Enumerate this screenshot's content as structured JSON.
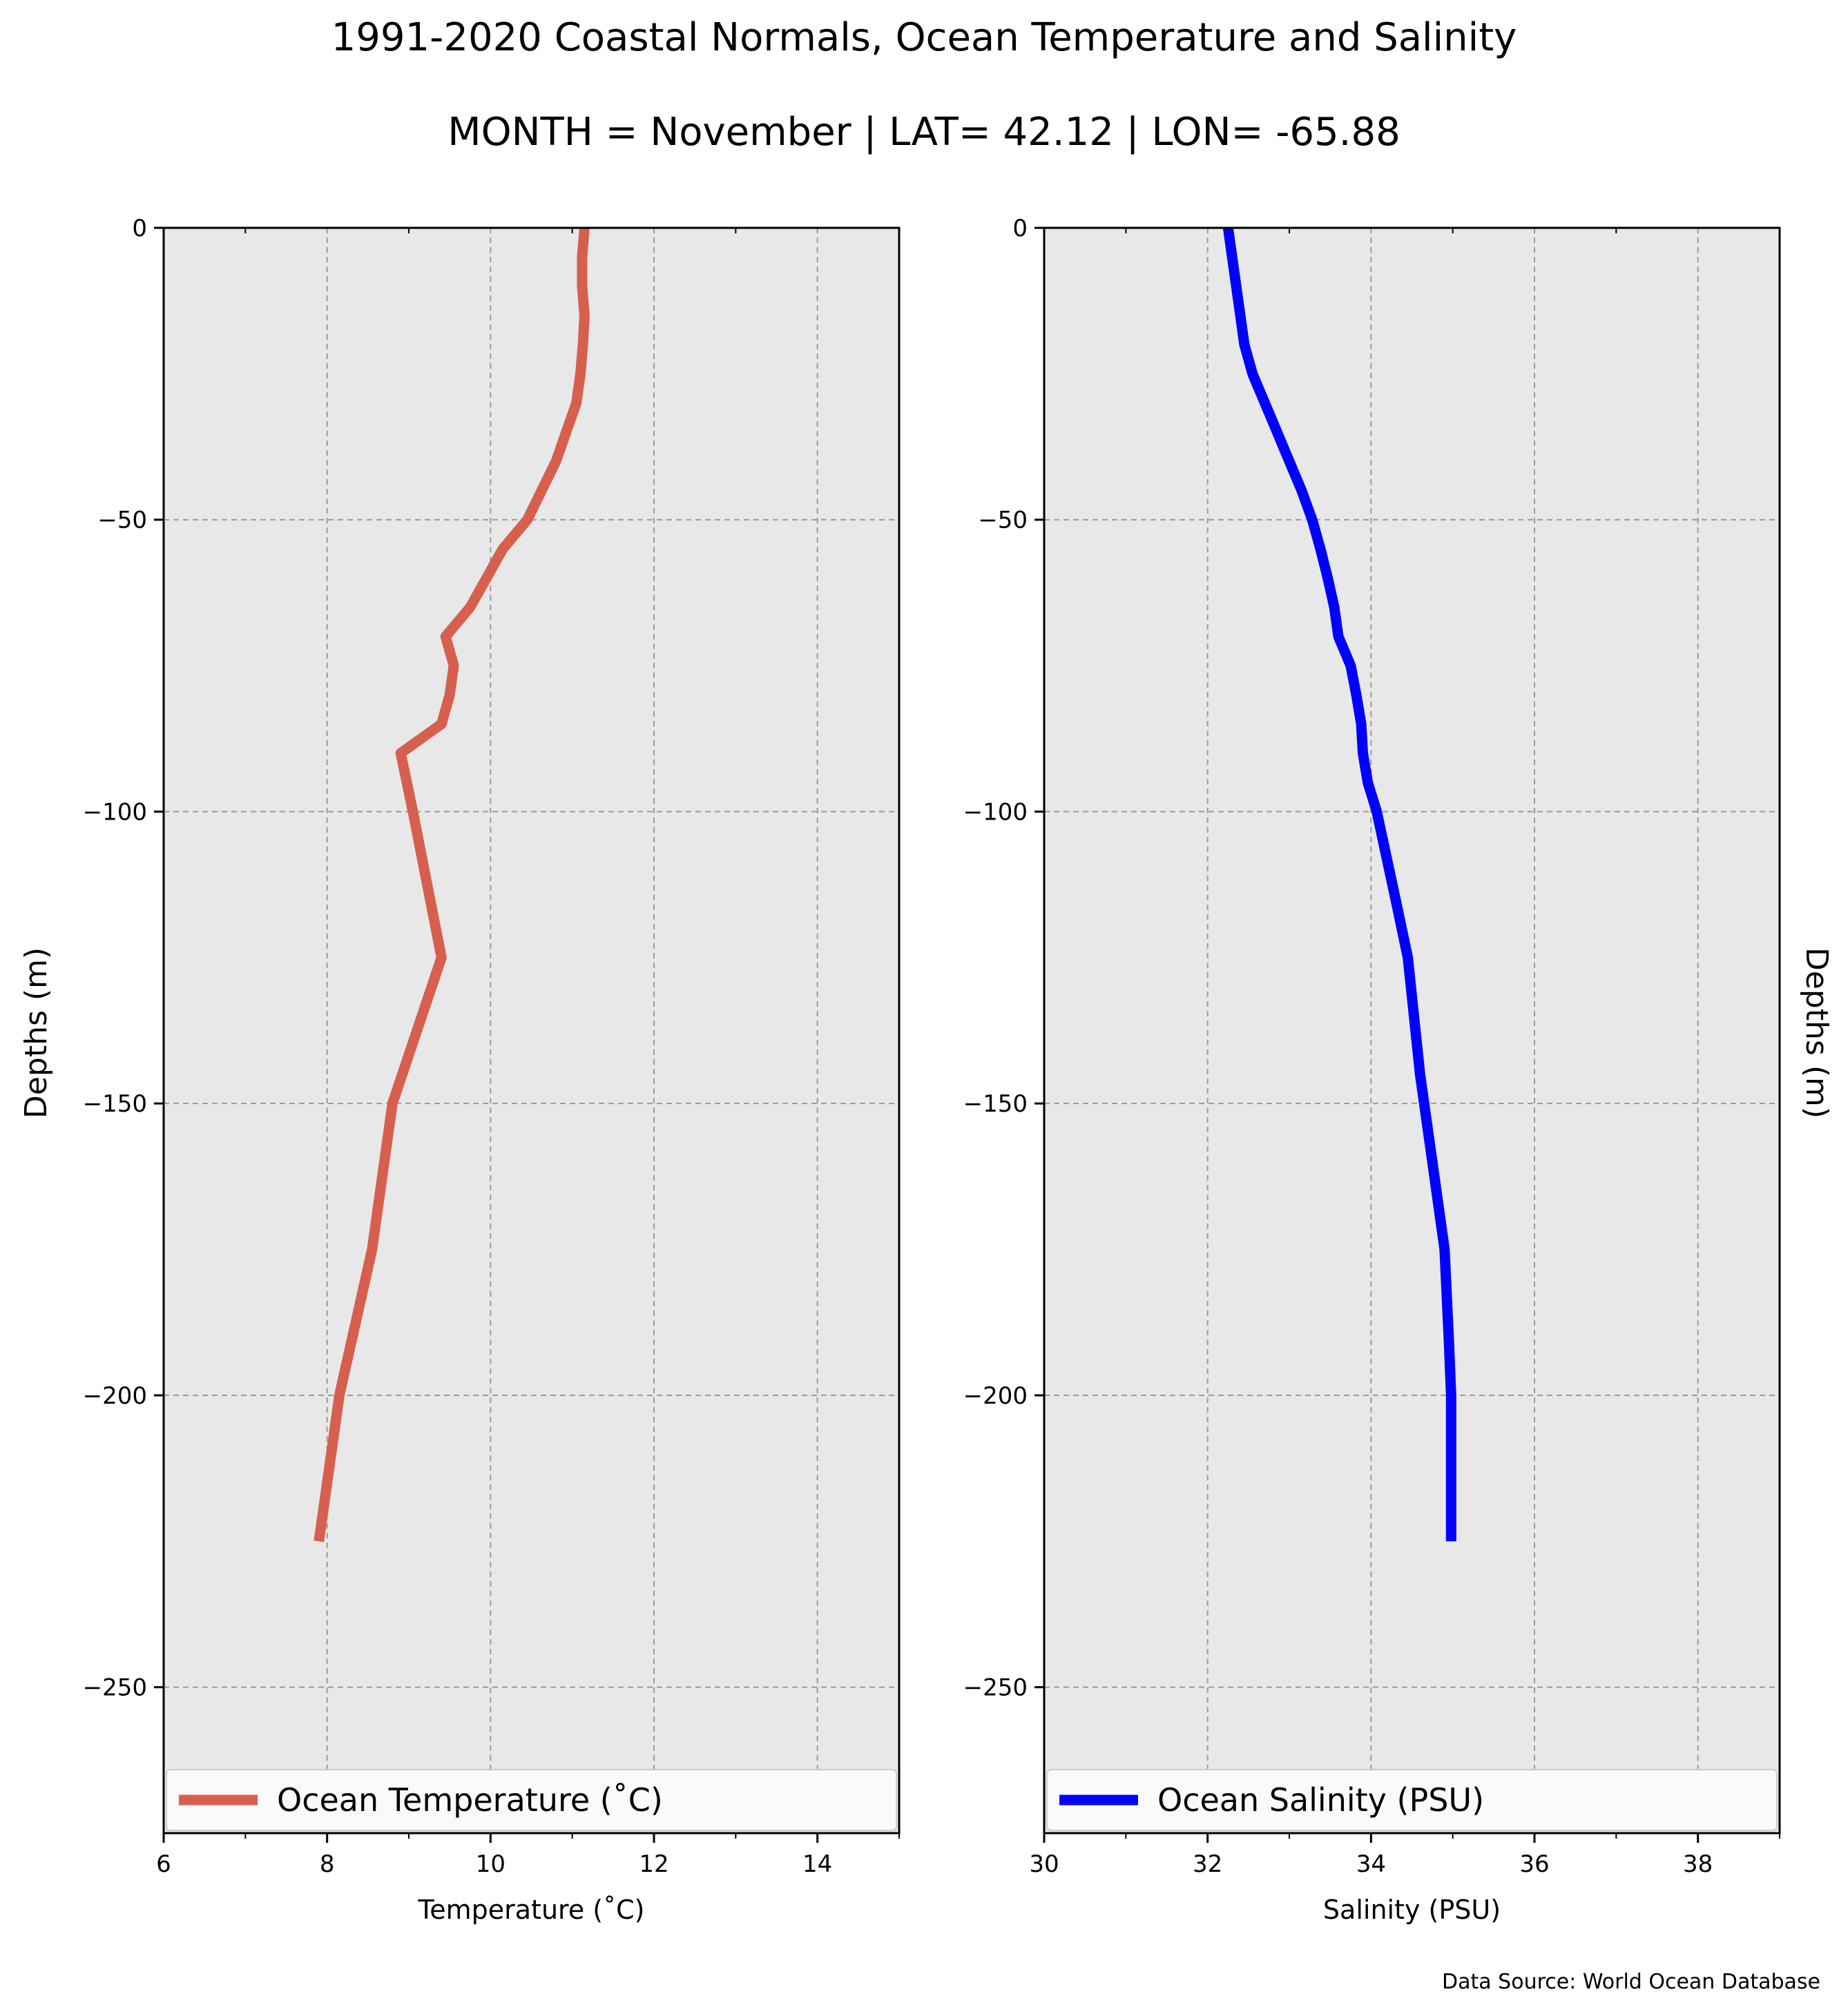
{
  "figure": {
    "title_line1": "1991-2020 Coastal Normals, Ocean Temperature and Salinity",
    "title_line2": "MONTH = November | LAT= 42.12 | LON= -65.88",
    "source": "Data Source: World Ocean Database",
    "background": "#e8e8e8"
  },
  "chart_data": [
    {
      "type": "line",
      "xlabel": "Temperature (˚C)",
      "ylabel": "Depths (m)",
      "xlim": [
        6,
        15
      ],
      "ylim": [
        -275,
        0
      ],
      "xticks": [
        6,
        8,
        10,
        12,
        14
      ],
      "yticks": [
        0,
        -50,
        -100,
        -150,
        -200,
        -250
      ],
      "xtick_labels": [
        "6",
        "8",
        "10",
        "12",
        "14"
      ],
      "ytick_labels": [
        "0",
        "−50",
        "−100",
        "−150",
        "−200",
        "−250"
      ],
      "grid": true,
      "legend_position": "bottom",
      "series": [
        {
          "name": "Ocean Temperature (˚C)",
          "color": "#d75f4e",
          "points": [
            [
              11.15,
              0
            ],
            [
              11.12,
              -5
            ],
            [
              11.12,
              -10
            ],
            [
              11.15,
              -15
            ],
            [
              11.13,
              -20
            ],
            [
              11.1,
              -25
            ],
            [
              11.05,
              -30
            ],
            [
              10.8,
              -40
            ],
            [
              10.45,
              -50
            ],
            [
              10.15,
              -55
            ],
            [
              9.95,
              -60
            ],
            [
              9.75,
              -65
            ],
            [
              9.45,
              -70
            ],
            [
              9.55,
              -75
            ],
            [
              9.5,
              -80
            ],
            [
              9.4,
              -85
            ],
            [
              8.9,
              -90
            ],
            [
              9.05,
              -100
            ],
            [
              9.4,
              -125
            ],
            [
              8.8,
              -150
            ],
            [
              8.55,
              -175
            ],
            [
              8.15,
              -200
            ],
            [
              8.05,
              -210
            ],
            [
              7.9,
              -225
            ]
          ]
        }
      ]
    },
    {
      "type": "line",
      "xlabel": "Salinity (PSU)",
      "ylabel": "Depths (m)",
      "xlim": [
        30,
        39
      ],
      "ylim": [
        -275,
        0
      ],
      "xticks": [
        30,
        32,
        34,
        36,
        38
      ],
      "yticks": [
        0,
        -50,
        -100,
        -150,
        -200,
        -250
      ],
      "xtick_labels": [
        "30",
        "32",
        "34",
        "36",
        "38"
      ],
      "ytick_labels": [
        "0",
        "−50",
        "−100",
        "−150",
        "−200",
        "−250"
      ],
      "grid": true,
      "legend_position": "bottom",
      "series": [
        {
          "name": "Ocean Salinity (PSU)",
          "color": "#0000ff",
          "points": [
            [
              32.25,
              0
            ],
            [
              32.3,
              -5
            ],
            [
              32.35,
              -10
            ],
            [
              32.4,
              -15
            ],
            [
              32.45,
              -20
            ],
            [
              32.55,
              -25
            ],
            [
              32.7,
              -30
            ],
            [
              32.85,
              -35
            ],
            [
              33.0,
              -40
            ],
            [
              33.15,
              -45
            ],
            [
              33.28,
              -50
            ],
            [
              33.38,
              -55
            ],
            [
              33.47,
              -60
            ],
            [
              33.55,
              -65
            ],
            [
              33.6,
              -70
            ],
            [
              33.75,
              -75
            ],
            [
              33.82,
              -80
            ],
            [
              33.88,
              -85
            ],
            [
              33.9,
              -90
            ],
            [
              33.96,
              -95
            ],
            [
              34.07,
              -100
            ],
            [
              34.3,
              -115
            ],
            [
              34.45,
              -125
            ],
            [
              34.6,
              -145
            ],
            [
              34.75,
              -160
            ],
            [
              34.9,
              -175
            ],
            [
              34.95,
              -190
            ],
            [
              34.98,
              -200
            ],
            [
              34.98,
              -225
            ]
          ]
        }
      ]
    }
  ]
}
